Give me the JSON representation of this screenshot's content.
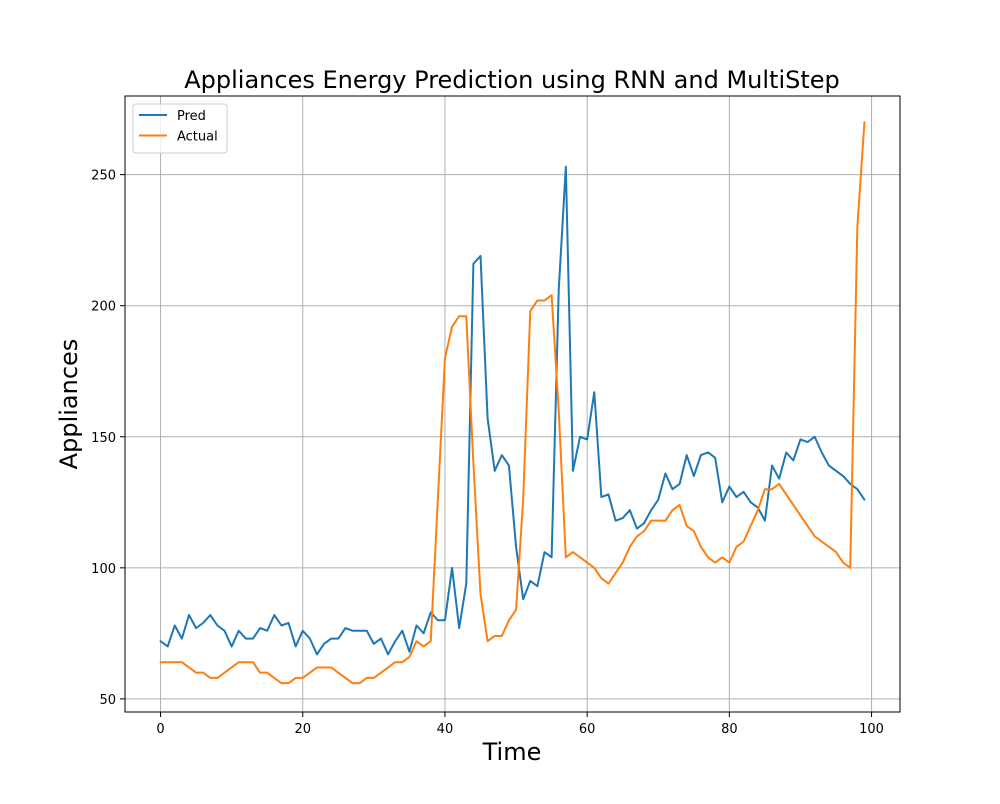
{
  "chart_data": {
    "type": "line",
    "title": "Appliances Energy Prediction using RNN and MultiStep",
    "xlabel": "Time",
    "ylabel": "Appliances",
    "xlim": [
      -5,
      104
    ],
    "ylim": [
      45,
      280
    ],
    "xticks": [
      0,
      20,
      40,
      60,
      80,
      100
    ],
    "yticks": [
      50,
      100,
      150,
      200,
      250
    ],
    "grid": true,
    "legend_position": "top-left",
    "series": [
      {
        "name": "Pred",
        "color": "#1f77b4",
        "values": [
          72,
          70,
          78,
          73,
          82,
          77,
          79,
          82,
          78,
          76,
          70,
          76,
          73,
          73,
          77,
          76,
          82,
          78,
          79,
          70,
          76,
          73,
          67,
          71,
          73,
          73,
          77,
          76,
          76,
          76,
          71,
          73,
          67,
          72,
          76,
          68,
          78,
          75,
          83,
          80,
          80,
          100,
          77,
          94,
          216,
          219,
          157,
          137,
          143,
          139,
          108,
          88,
          95,
          93,
          106,
          104,
          206,
          253,
          137,
          150,
          149,
          167,
          127,
          128,
          118,
          119,
          122,
          115,
          117,
          122,
          126,
          136,
          130,
          132,
          143,
          135,
          143,
          144,
          142,
          125,
          131,
          127,
          129,
          125,
          123,
          118,
          139,
          134,
          144,
          141,
          149,
          148,
          150,
          144,
          139,
          137,
          135,
          132,
          130,
          126
        ]
      },
      {
        "name": "Actual",
        "color": "#ff7f0e",
        "values": [
          64,
          64,
          64,
          64,
          62,
          60,
          60,
          58,
          58,
          60,
          62,
          64,
          64,
          64,
          60,
          60,
          58,
          56,
          56,
          58,
          58,
          60,
          62,
          62,
          62,
          60,
          58,
          56,
          56,
          58,
          58,
          60,
          62,
          64,
          64,
          66,
          72,
          70,
          72,
          126,
          180,
          192,
          196,
          196,
          140,
          90,
          72,
          74,
          74,
          80,
          84,
          126,
          198,
          202,
          202,
          204,
          160,
          104,
          106,
          104,
          102,
          100,
          96,
          94,
          98,
          102,
          108,
          112,
          114,
          118,
          118,
          118,
          122,
          124,
          116,
          114,
          108,
          104,
          102,
          104,
          102,
          108,
          110,
          116,
          122,
          130,
          130,
          132,
          128,
          124,
          120,
          116,
          112,
          110,
          108,
          106,
          102,
          100,
          230,
          270
        ]
      }
    ]
  }
}
